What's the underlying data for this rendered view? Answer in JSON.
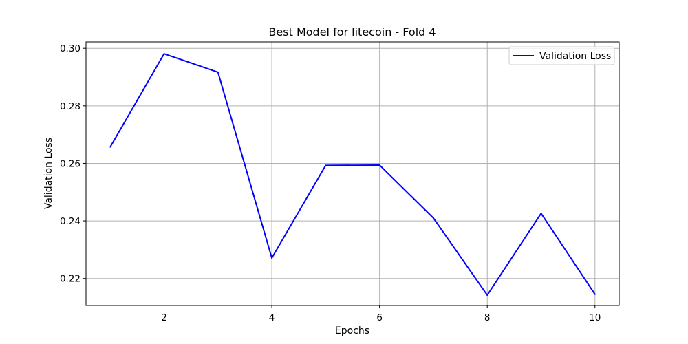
{
  "chart_data": {
    "type": "line",
    "title": "Best Model for litecoin - Fold 4",
    "xlabel": "Epochs",
    "ylabel": "Validation Loss",
    "x": [
      1,
      2,
      3,
      4,
      5,
      6,
      7,
      8,
      9,
      10
    ],
    "series": [
      {
        "name": "Validation Loss",
        "color": "#0000ff",
        "values": [
          0.2657,
          0.2981,
          0.2917,
          0.2271,
          0.2593,
          0.2594,
          0.241,
          0.2142,
          0.2426,
          0.2145
        ]
      }
    ],
    "xlim": [
      0.55,
      10.45
    ],
    "ylim": [
      0.2106,
      0.3022
    ],
    "xticks": [
      2,
      4,
      6,
      8,
      10
    ],
    "xtick_labels": [
      "2",
      "4",
      "6",
      "8",
      "10"
    ],
    "yticks": [
      0.22,
      0.24,
      0.26,
      0.28,
      0.3
    ],
    "ytick_labels": [
      "0.22",
      "0.24",
      "0.26",
      "0.28",
      "0.30"
    ],
    "grid": true,
    "legend_position": "top-right"
  }
}
